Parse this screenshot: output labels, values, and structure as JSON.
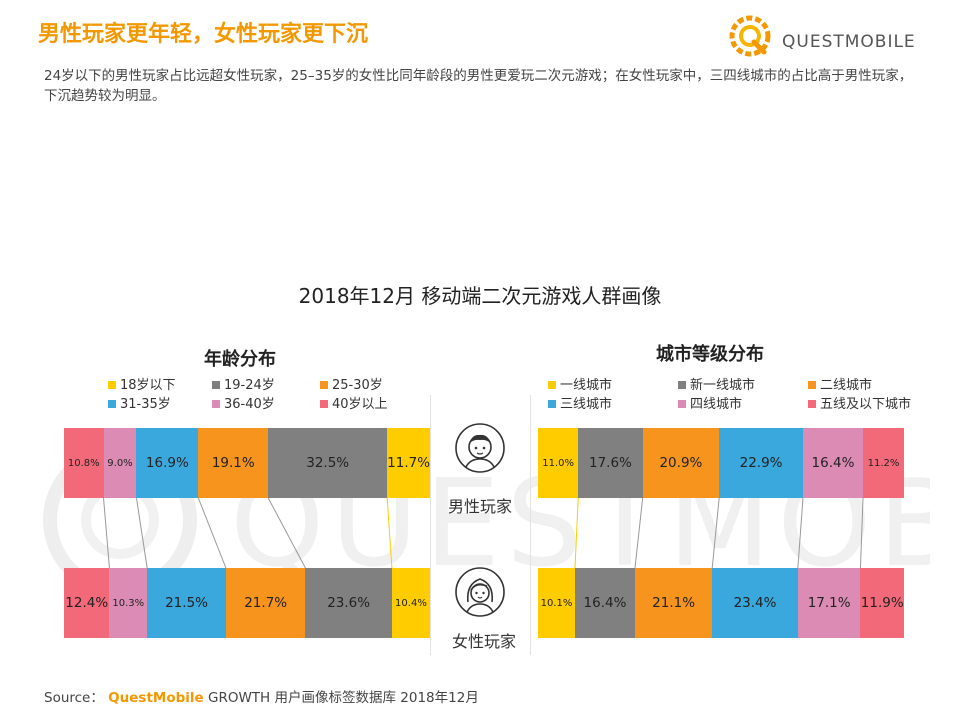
{
  "header": {
    "title": "男性玩家更年轻，女性玩家更下沉",
    "logo_text": "QUESTMOBILE",
    "description": "24岁以下的男性玩家占比远超女性玩家，25–35岁的女性比同年龄段的男性更爱玩二次元游戏；在女性玩家中，三四线城市的占比高于男性玩家，下沉趋势较为明显。"
  },
  "watermark_text": "QUESTMOBILE",
  "source": {
    "prefix": "Source：",
    "brand": "QuestMobile",
    "rest": " GROWTH 用户画像标签数据库 2018年12月"
  },
  "colors": {
    "accent": "#f39800",
    "yellow": "#ffcc00",
    "gray": "#808080",
    "orange": "#f7941d",
    "blue": "#3aa8dc",
    "pink": "#dc8cb4",
    "red": "#f2697a"
  },
  "groups": {
    "male": "男性玩家",
    "female": "女性玩家",
    "male_icon": "male-avatar-icon",
    "female_icon": "female-avatar-icon"
  },
  "chart_data": {
    "type": "bar",
    "stacked": true,
    "orientation": "horizontal",
    "title": "2018年12月 移动端二次元游戏人群画像",
    "panels": [
      {
        "title": "年龄分布",
        "categories": [
          "男性玩家",
          "女性玩家"
        ],
        "series": [
          {
            "name": "18岁以下",
            "color": "#ffcc00",
            "values": [
              11.7,
              10.4
            ]
          },
          {
            "name": "19-24岁",
            "color": "#808080",
            "values": [
              32.5,
              23.6
            ]
          },
          {
            "name": "25-30岁",
            "color": "#f7941d",
            "values": [
              19.1,
              21.7
            ]
          },
          {
            "name": "31-35岁",
            "color": "#3aa8dc",
            "values": [
              16.9,
              21.5
            ]
          },
          {
            "name": "36-40岁",
            "color": "#dc8cb4",
            "values": [
              9.0,
              10.3
            ]
          },
          {
            "name": "40岁以上",
            "color": "#f2697a",
            "values": [
              10.8,
              12.4
            ]
          }
        ],
        "stack_direction": "right-to-left",
        "legend": "top"
      },
      {
        "title": "城市等级分布",
        "categories": [
          "男性玩家",
          "女性玩家"
        ],
        "series": [
          {
            "name": "一线城市",
            "color": "#ffcc00",
            "values": [
              11.0,
              10.1
            ]
          },
          {
            "name": "新一线城市",
            "color": "#808080",
            "values": [
              17.6,
              16.4
            ]
          },
          {
            "name": "二线城市",
            "color": "#f7941d",
            "values": [
              20.9,
              21.1
            ]
          },
          {
            "name": "三线城市",
            "color": "#3aa8dc",
            "values": [
              22.9,
              23.4
            ]
          },
          {
            "name": "四线城市",
            "color": "#dc8cb4",
            "values": [
              16.4,
              17.1
            ]
          },
          {
            "name": "五线及以下城市",
            "color": "#f2697a",
            "values": [
              11.2,
              11.9
            ]
          }
        ],
        "stack_direction": "left-to-right",
        "legend": "top"
      }
    ]
  }
}
